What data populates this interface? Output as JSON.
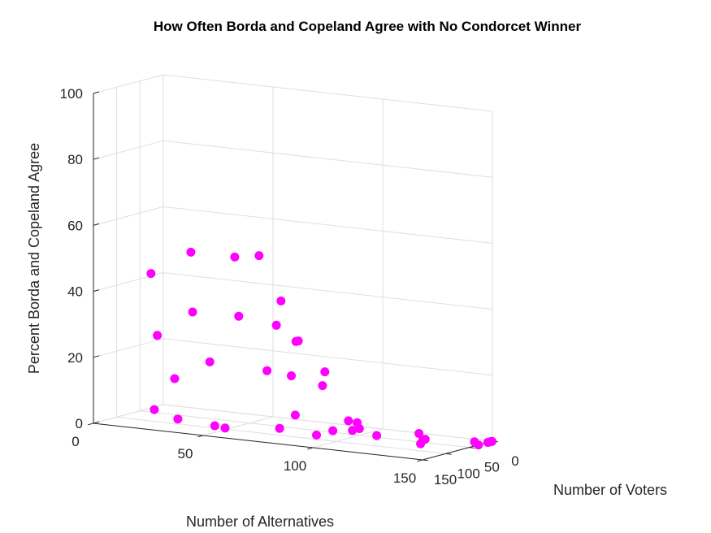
{
  "chart_data": {
    "type": "scatter3d",
    "title": "How Often Borda and Copeland Agree with No Condorcet Winner",
    "xlabel": "Number of Alternatives",
    "ylabel": "Number of Voters",
    "zlabel": "Percent Borda and Copeland Agree",
    "xlim": [
      0,
      150
    ],
    "ylim": [
      0,
      150
    ],
    "zlim": [
      0,
      100
    ],
    "xticks": [
      "0",
      "50",
      "100",
      "150"
    ],
    "yticks": [
      "0",
      "50",
      "100",
      "150"
    ],
    "zticks": [
      "0",
      "20",
      "40",
      "60",
      "80",
      "100"
    ],
    "grid": true,
    "marker_color": "#ff00ff",
    "points": [
      {
        "x": 60,
        "y": 150,
        "z": 3
      },
      {
        "x": 50,
        "y": 125,
        "z": 2
      },
      {
        "x": 30,
        "y": 110,
        "z": 2
      },
      {
        "x": 15,
        "y": 90,
        "z": 3
      },
      {
        "x": 5,
        "y": 50,
        "z": 42
      },
      {
        "x": 10,
        "y": 60,
        "z": 24
      },
      {
        "x": 20,
        "y": 70,
        "z": 12
      },
      {
        "x": 20,
        "y": 35,
        "z": 49
      },
      {
        "x": 40,
        "y": 35,
        "z": 49
      },
      {
        "x": 50,
        "y": 30,
        "z": 50
      },
      {
        "x": 25,
        "y": 55,
        "z": 32
      },
      {
        "x": 35,
        "y": 65,
        "z": 18
      },
      {
        "x": 45,
        "y": 50,
        "z": 32
      },
      {
        "x": 60,
        "y": 30,
        "z": 37
      },
      {
        "x": 60,
        "y": 40,
        "z": 30
      },
      {
        "x": 70,
        "y": 40,
        "z": 26
      },
      {
        "x": 70,
        "y": 45,
        "z": 26
      },
      {
        "x": 70,
        "y": 55,
        "z": 16
      },
      {
        "x": 80,
        "y": 30,
        "z": 17
      },
      {
        "x": 80,
        "y": 35,
        "z": 13
      },
      {
        "x": 60,
        "y": 60,
        "z": 17
      },
      {
        "x": 75,
        "y": 70,
        "z": 5
      },
      {
        "x": 95,
        "y": 50,
        "z": 4
      },
      {
        "x": 100,
        "y": 55,
        "z": 4
      },
      {
        "x": 100,
        "y": 50,
        "z": 2
      },
      {
        "x": 90,
        "y": 60,
        "z": 1
      },
      {
        "x": 100,
        "y": 65,
        "z": 2
      },
      {
        "x": 110,
        "y": 60,
        "z": 1
      },
      {
        "x": 70,
        "y": 80,
        "z": 1
      },
      {
        "x": 90,
        "y": 95,
        "z": 1
      },
      {
        "x": 125,
        "y": 40,
        "z": 2
      },
      {
        "x": 130,
        "y": 50,
        "z": 1
      },
      {
        "x": 130,
        "y": 55,
        "z": 1
      },
      {
        "x": 130,
        "y": 60,
        "z": 0
      },
      {
        "x": 150,
        "y": 30,
        "z": 0
      },
      {
        "x": 145,
        "y": 15,
        "z": 0
      },
      {
        "x": 150,
        "y": 10,
        "z": 0
      },
      {
        "x": 150,
        "y": 5,
        "z": 0
      },
      {
        "x": 150,
        "y": 3,
        "z": 0
      },
      {
        "x": 150,
        "y": 1,
        "z": 0
      }
    ]
  }
}
